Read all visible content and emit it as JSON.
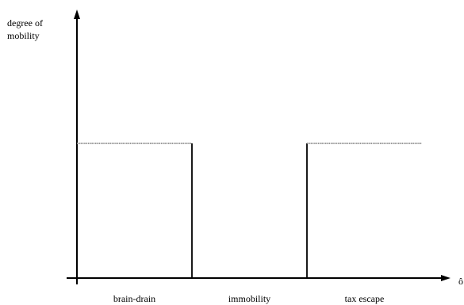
{
  "chart_data": {
    "type": "line",
    "title": "",
    "ylabel_lines": [
      "degree of",
      "mobility"
    ],
    "xlabel": "ô",
    "categories": [
      "brain-drain",
      "immobility",
      "tax escape"
    ],
    "x": [
      0,
      1,
      1,
      2,
      2,
      3
    ],
    "y": [
      1,
      1,
      0,
      0,
      1,
      1
    ],
    "xlim": [
      0,
      3
    ],
    "ylim": [
      0,
      2
    ],
    "grid": false,
    "legend": "none",
    "colors": {
      "axis": "#000000",
      "series": "#8c8c8c",
      "drop": "#000000"
    }
  }
}
